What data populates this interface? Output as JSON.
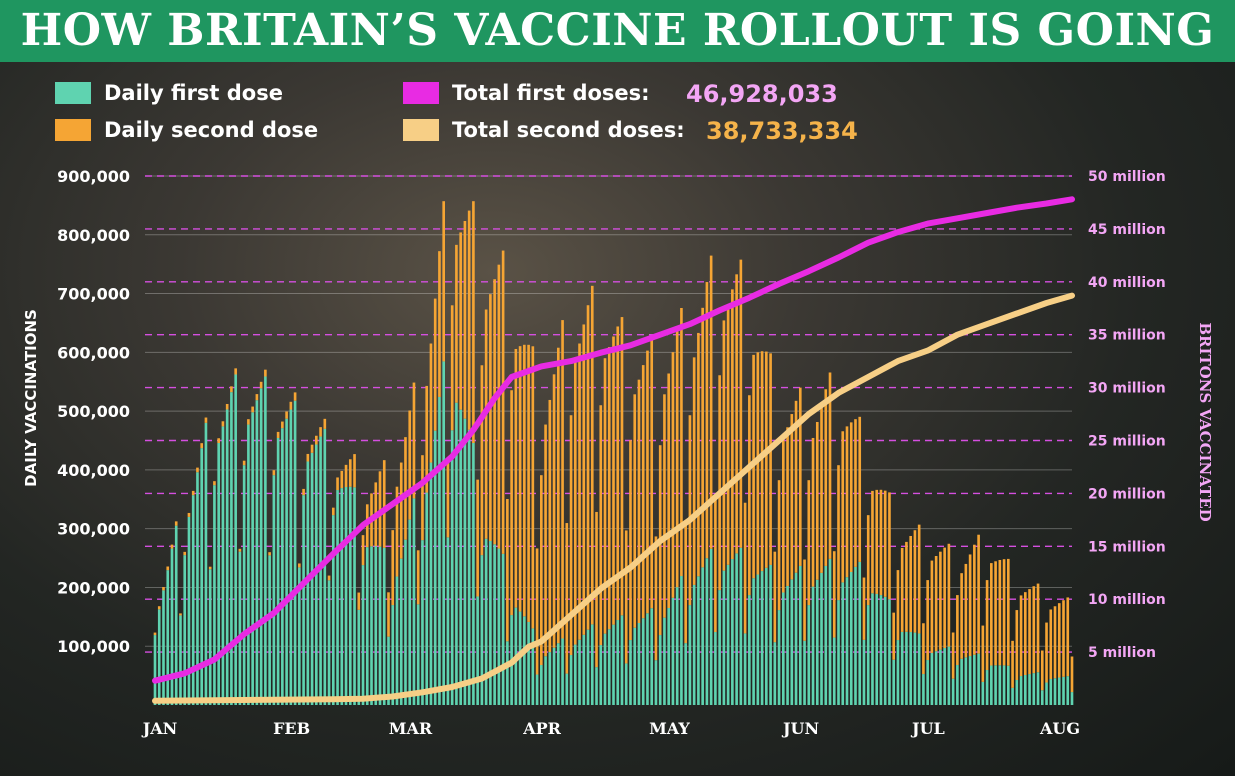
{
  "title": "HOW BRITAIN’S VACCINE ROLLOUT IS GOING",
  "colors": {
    "banner": "#1f9660",
    "first_dose_bar": "#5fd3b0",
    "second_dose_bar": "#f5a534",
    "total_first_line": "#e82be3",
    "total_second_line": "#f7cf86",
    "right_axis_text": "#f3a6f5",
    "value_first": "#f3a6f5",
    "value_second": "#f5b34a"
  },
  "chart_data": {
    "type": "bar",
    "legend": {
      "daily_first": "Daily first dose",
      "daily_second": "Daily second dose",
      "total_first": "Total first doses:",
      "total_first_value": "46,928,033",
      "total_second": "Total second doses:",
      "total_second_value": "38,733,334"
    },
    "ylabel": "DAILY VACCINATIONS",
    "y2label": "BRITONS VACCINATED",
    "ylim": [
      0,
      900000
    ],
    "y_ticks": [
      100000,
      200000,
      300000,
      400000,
      500000,
      600000,
      700000,
      800000,
      900000
    ],
    "y_tick_labels": [
      "100,000",
      "200,000",
      "300,000",
      "400,000",
      "500,000",
      "600,000",
      "700,000",
      "800,000",
      "900,000"
    ],
    "y2lim": [
      0,
      50000000
    ],
    "y2_ticks": [
      5000000,
      10000000,
      15000000,
      20000000,
      25000000,
      30000000,
      35000000,
      40000000,
      45000000,
      50000000
    ],
    "y2_tick_labels": [
      "5 million",
      "10 million",
      "15 million",
      "20 million",
      "25 million",
      "30 million",
      "35 million",
      "40 million",
      "45 million",
      "50 million"
    ],
    "x_month_labels": [
      {
        "label": "JAN",
        "day": 0
      },
      {
        "label": "FEB",
        "day": 31
      },
      {
        "label": "MAR",
        "day": 59
      },
      {
        "label": "APR",
        "day": 90
      },
      {
        "label": "MAY",
        "day": 120
      },
      {
        "label": "JUN",
        "day": 151
      },
      {
        "label": "JUL",
        "day": 181
      },
      {
        "label": "AUG",
        "day": 212
      }
    ],
    "x_range_days": [
      0,
      216
    ],
    "daily_note": "Daily values estimated weekly from the chart (Monday of each week) and interpolated per day.",
    "daily_first_weekly": [
      {
        "day": 0,
        "value": 140000
      },
      {
        "day": 7,
        "value": 300000
      },
      {
        "day": 14,
        "value": 440000
      },
      {
        "day": 21,
        "value": 480000
      },
      {
        "day": 28,
        "value": 460000
      },
      {
        "day": 35,
        "value": 420000
      },
      {
        "day": 42,
        "value": 380000
      },
      {
        "day": 49,
        "value": 280000
      },
      {
        "day": 56,
        "value": 200000
      },
      {
        "day": 63,
        "value": 330000
      },
      {
        "day": 70,
        "value": 550000
      },
      {
        "day": 77,
        "value": 300000
      },
      {
        "day": 84,
        "value": 180000
      },
      {
        "day": 91,
        "value": 80000
      },
      {
        "day": 98,
        "value": 100000
      },
      {
        "day": 105,
        "value": 120000
      },
      {
        "day": 112,
        "value": 130000
      },
      {
        "day": 119,
        "value": 140000
      },
      {
        "day": 126,
        "value": 200000
      },
      {
        "day": 133,
        "value": 230000
      },
      {
        "day": 140,
        "value": 220000
      },
      {
        "day": 147,
        "value": 190000
      },
      {
        "day": 154,
        "value": 200000
      },
      {
        "day": 161,
        "value": 210000
      },
      {
        "day": 168,
        "value": 200000
      },
      {
        "day": 175,
        "value": 130000
      },
      {
        "day": 182,
        "value": 90000
      },
      {
        "day": 189,
        "value": 80000
      },
      {
        "day": 196,
        "value": 70000
      },
      {
        "day": 203,
        "value": 50000
      },
      {
        "day": 210,
        "value": 45000
      },
      {
        "day": 216,
        "value": 40000
      }
    ],
    "daily_second_weekly": [
      {
        "day": 0,
        "value": 5000
      },
      {
        "day": 14,
        "value": 8000
      },
      {
        "day": 28,
        "value": 10000
      },
      {
        "day": 42,
        "value": 15000
      },
      {
        "day": 49,
        "value": 60000
      },
      {
        "day": 56,
        "value": 150000
      },
      {
        "day": 63,
        "value": 170000
      },
      {
        "day": 70,
        "value": 250000
      },
      {
        "day": 77,
        "value": 380000
      },
      {
        "day": 84,
        "value": 450000
      },
      {
        "day": 91,
        "value": 380000
      },
      {
        "day": 98,
        "value": 480000
      },
      {
        "day": 105,
        "value": 480000
      },
      {
        "day": 112,
        "value": 400000
      },
      {
        "day": 119,
        "value": 380000
      },
      {
        "day": 126,
        "value": 380000
      },
      {
        "day": 133,
        "value": 430000
      },
      {
        "day": 140,
        "value": 400000
      },
      {
        "day": 147,
        "value": 260000
      },
      {
        "day": 154,
        "value": 250000
      },
      {
        "day": 161,
        "value": 270000
      },
      {
        "day": 168,
        "value": 180000
      },
      {
        "day": 175,
        "value": 140000
      },
      {
        "day": 182,
        "value": 160000
      },
      {
        "day": 189,
        "value": 140000
      },
      {
        "day": 196,
        "value": 180000
      },
      {
        "day": 203,
        "value": 140000
      },
      {
        "day": 210,
        "value": 120000
      },
      {
        "day": 216,
        "value": 110000
      }
    ],
    "total_first_doses": [
      {
        "day": 0,
        "value": 2300000
      },
      {
        "day": 7,
        "value": 3000000
      },
      {
        "day": 14,
        "value": 4300000
      },
      {
        "day": 21,
        "value": 6700000
      },
      {
        "day": 28,
        "value": 8700000
      },
      {
        "day": 35,
        "value": 11500000
      },
      {
        "day": 42,
        "value": 14300000
      },
      {
        "day": 49,
        "value": 17000000
      },
      {
        "day": 56,
        "value": 19000000
      },
      {
        "day": 63,
        "value": 21000000
      },
      {
        "day": 70,
        "value": 23500000
      },
      {
        "day": 75,
        "value": 26000000
      },
      {
        "day": 80,
        "value": 29000000
      },
      {
        "day": 84,
        "value": 31000000
      },
      {
        "day": 91,
        "value": 32000000
      },
      {
        "day": 98,
        "value": 32500000
      },
      {
        "day": 105,
        "value": 33300000
      },
      {
        "day": 112,
        "value": 34000000
      },
      {
        "day": 119,
        "value": 35000000
      },
      {
        "day": 126,
        "value": 36000000
      },
      {
        "day": 133,
        "value": 37300000
      },
      {
        "day": 140,
        "value": 38500000
      },
      {
        "day": 147,
        "value": 39800000
      },
      {
        "day": 154,
        "value": 41000000
      },
      {
        "day": 161,
        "value": 42300000
      },
      {
        "day": 168,
        "value": 43700000
      },
      {
        "day": 175,
        "value": 44700000
      },
      {
        "day": 182,
        "value": 45500000
      },
      {
        "day": 189,
        "value": 46000000
      },
      {
        "day": 196,
        "value": 46500000
      },
      {
        "day": 203,
        "value": 47000000
      },
      {
        "day": 210,
        "value": 47400000
      },
      {
        "day": 216,
        "value": 47800000
      }
    ],
    "total_second_doses": [
      {
        "day": 0,
        "value": 400000
      },
      {
        "day": 14,
        "value": 450000
      },
      {
        "day": 28,
        "value": 500000
      },
      {
        "day": 42,
        "value": 550000
      },
      {
        "day": 49,
        "value": 600000
      },
      {
        "day": 56,
        "value": 800000
      },
      {
        "day": 63,
        "value": 1200000
      },
      {
        "day": 70,
        "value": 1700000
      },
      {
        "day": 77,
        "value": 2500000
      },
      {
        "day": 84,
        "value": 4000000
      },
      {
        "day": 88,
        "value": 5500000
      },
      {
        "day": 91,
        "value": 6000000
      },
      {
        "day": 98,
        "value": 8500000
      },
      {
        "day": 105,
        "value": 11000000
      },
      {
        "day": 112,
        "value": 13000000
      },
      {
        "day": 119,
        "value": 15500000
      },
      {
        "day": 126,
        "value": 17500000
      },
      {
        "day": 133,
        "value": 20000000
      },
      {
        "day": 140,
        "value": 22500000
      },
      {
        "day": 147,
        "value": 25000000
      },
      {
        "day": 154,
        "value": 27500000
      },
      {
        "day": 161,
        "value": 29500000
      },
      {
        "day": 168,
        "value": 31000000
      },
      {
        "day": 175,
        "value": 32500000
      },
      {
        "day": 182,
        "value": 33500000
      },
      {
        "day": 189,
        "value": 35000000
      },
      {
        "day": 196,
        "value": 36000000
      },
      {
        "day": 203,
        "value": 37000000
      },
      {
        "day": 210,
        "value": 38000000
      },
      {
        "day": 216,
        "value": 38700000
      }
    ]
  }
}
